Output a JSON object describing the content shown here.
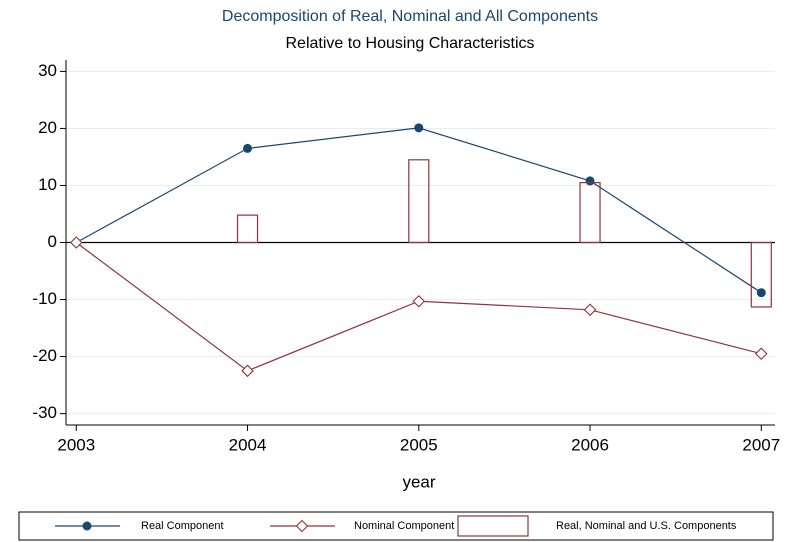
{
  "chart_data": {
    "type": "line",
    "title": "Decomposition of Real, Nominal and All Components",
    "subtitle": "Relative to Housing Characteristics",
    "x_label": "year",
    "x": [
      2003,
      2004,
      2005,
      2006,
      2007
    ],
    "series": [
      {
        "name": "Real Component",
        "type": "line",
        "marker": "circle",
        "color": "#1a476f",
        "values": [
          0,
          16.5,
          20.1,
          10.8,
          -8.8
        ]
      },
      {
        "name": "Nominal Component",
        "type": "line",
        "marker": "diamond",
        "color": "#90353b",
        "values": [
          0,
          -22.5,
          -10.3,
          -11.8,
          -19.5
        ]
      },
      {
        "name": "Real, Nominal and U.S. Components",
        "type": "bar",
        "color": "#90353b",
        "values": [
          0,
          4.8,
          14.5,
          10.5,
          -11.3
        ]
      }
    ],
    "xlim": [
      2002.94,
      2007.08
    ],
    "xticks": [
      2003,
      2004,
      2005,
      2006,
      2007
    ],
    "ylim": [
      -32,
      32
    ],
    "yticks": [
      -30,
      -20,
      -10,
      0,
      10,
      20,
      30
    ],
    "grid": true,
    "grid_color": "#e6eff1",
    "yline": 0,
    "title_color": "#1a476f",
    "legend": "bottom"
  }
}
